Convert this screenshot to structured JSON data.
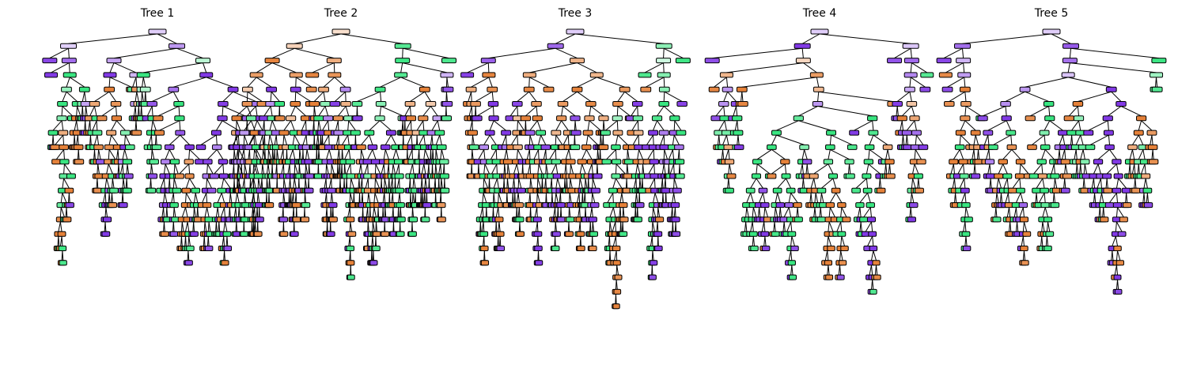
{
  "figure": {
    "trees": [
      {
        "title": "Tree 1"
      },
      {
        "title": "Tree 2"
      },
      {
        "title": "Tree 3"
      },
      {
        "title": "Tree 4"
      },
      {
        "title": "Tree 5"
      }
    ]
  },
  "palette": {
    "class_0": "#e58139",
    "class_1": "#39e581",
    "class_2": "#8139e5",
    "edge": "#000000",
    "background": "#ffffff"
  },
  "node_shading": {
    "min_alpha": 0.0,
    "max_alpha": 1.0
  }
}
